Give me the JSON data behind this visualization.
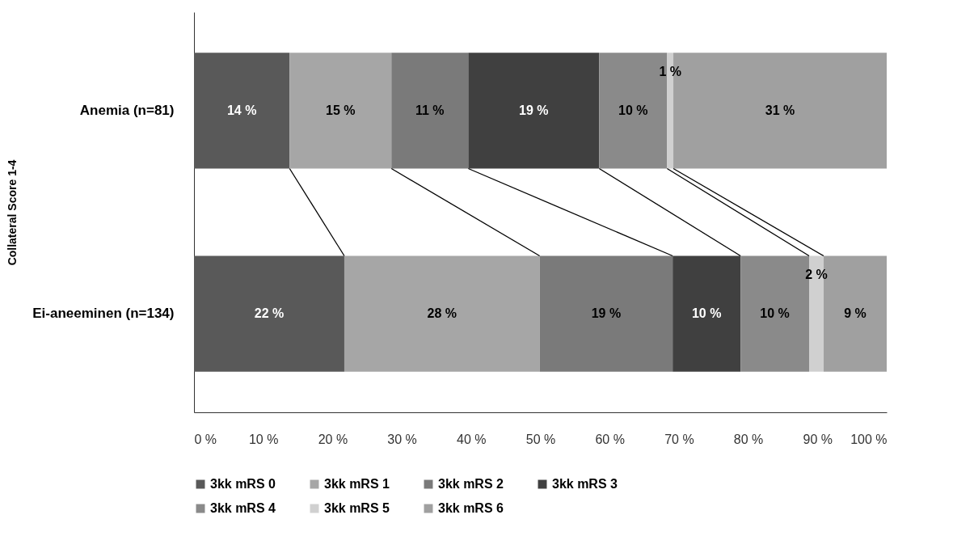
{
  "chart_data": {
    "type": "bar",
    "orientation": "horizontal",
    "stacked": true,
    "ylabel": "Collateral Score 1-4",
    "categories": [
      "Anemia (n=81)",
      "Ei-aneeminen (n=134)"
    ],
    "series": [
      {
        "name": "3kk mRS 0",
        "color": "#595959",
        "values": [
          13.8,
          21.7
        ],
        "value_labels": [
          "14 %",
          "22 %"
        ]
      },
      {
        "name": "3kk mRS 1",
        "color": "#a6a6a6",
        "values": [
          14.7,
          28.2
        ],
        "value_labels": [
          "15 %",
          "28 %"
        ]
      },
      {
        "name": "3kk mRS 2",
        "color": "#7a7a7a",
        "values": [
          11.1,
          19.2
        ],
        "value_labels": [
          "11 %",
          "19 %"
        ]
      },
      {
        "name": "3kk mRS 3",
        "color": "#404040",
        "values": [
          18.9,
          9.8
        ],
        "value_labels": [
          "19 %",
          "10 %"
        ]
      },
      {
        "name": "3kk mRS 4",
        "color": "#8a8a8a",
        "values": [
          9.8,
          9.9
        ],
        "value_labels": [
          "10 %",
          "10 %"
        ]
      },
      {
        "name": "3kk mRS 5",
        "color": "#d0d0d0",
        "values": [
          0.9,
          2.1
        ],
        "value_labels": [
          "1 %",
          "2 %"
        ]
      },
      {
        "name": "3kk mRS 6",
        "color": "#a0a0a0",
        "values": [
          30.8,
          9.1
        ],
        "value_labels": [
          "31 %",
          "9 %"
        ]
      }
    ],
    "xlim": [
      0,
      100
    ],
    "xticks": [
      {
        "value": 0,
        "label": "0 %"
      },
      {
        "value": 10,
        "label": "10 %"
      },
      {
        "value": 20,
        "label": "20 %"
      },
      {
        "value": 30,
        "label": "30 %"
      },
      {
        "value": 40,
        "label": "40 %"
      },
      {
        "value": 50,
        "label": "50 %"
      },
      {
        "value": 60,
        "label": "60 %"
      },
      {
        "value": 70,
        "label": "70 %"
      },
      {
        "value": 80,
        "label": "80 %"
      },
      {
        "value": 90,
        "label": "90 %"
      },
      {
        "value": 100,
        "label": "100 %"
      }
    ],
    "grid": false,
    "legend": "bottom"
  }
}
